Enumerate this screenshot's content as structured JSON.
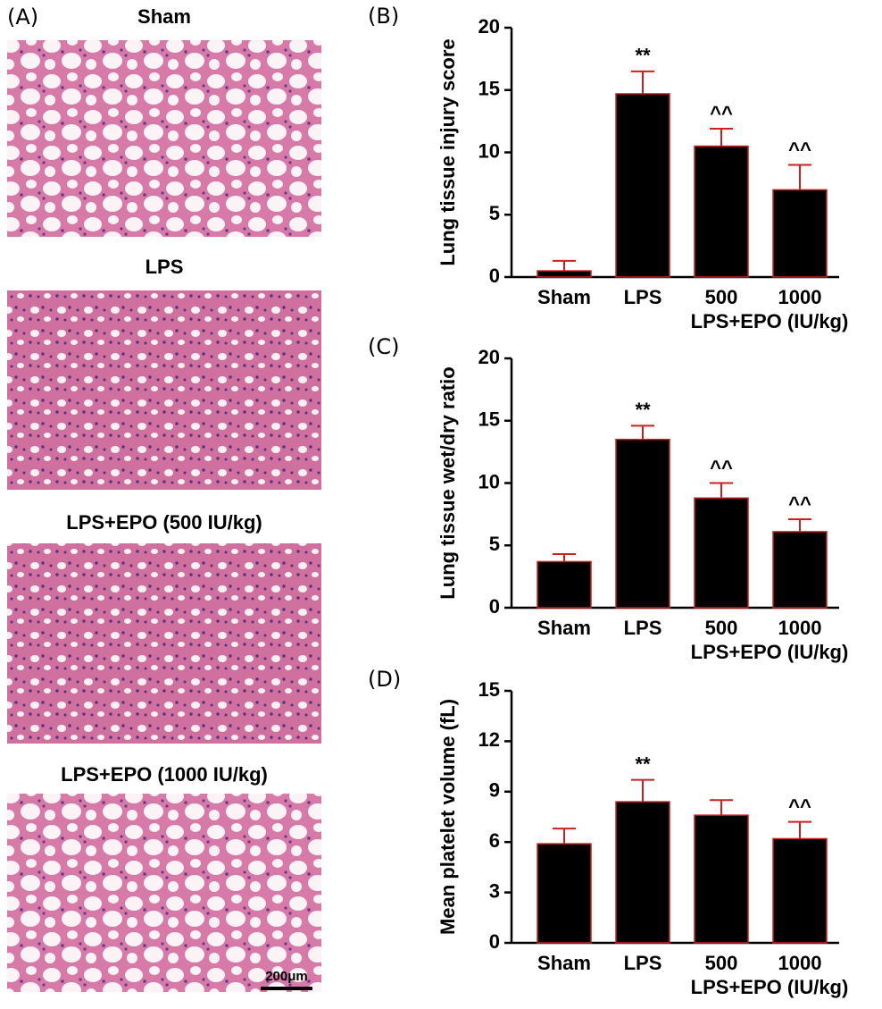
{
  "histology": {
    "panel": "(A)",
    "titles": [
      "Sham",
      "LPS",
      "LPS+EPO (500 IU/kg)",
      "LPS+EPO (1000 IU/kg)"
    ],
    "scale_bar": "200μm"
  },
  "chart_data": [
    {
      "type": "bar",
      "panel": "(B)",
      "ylabel": "Lung tissue injury score",
      "categories": [
        "Sham",
        "LPS",
        "500",
        "1000"
      ],
      "group_label": "LPS+EPO (IU/kg)",
      "values": [
        0.5,
        14.7,
        10.5,
        7.0
      ],
      "errors": [
        0.8,
        1.8,
        1.4,
        2.0
      ],
      "annotations": [
        null,
        "**",
        "^^",
        "^^"
      ],
      "color": "#000000",
      "edge_color": "#cc1f1f",
      "ylim": [
        0,
        20
      ],
      "yticks": [
        0,
        5,
        10,
        15,
        20
      ]
    },
    {
      "type": "bar",
      "panel": "(C)",
      "ylabel": "Lung tissue wet/dry ratio",
      "categories": [
        "Sham",
        "LPS",
        "500",
        "1000"
      ],
      "group_label": "LPS+EPO (IU/kg)",
      "values": [
        3.7,
        13.5,
        8.8,
        6.1
      ],
      "errors": [
        0.6,
        1.1,
        1.2,
        1.0
      ],
      "annotations": [
        null,
        "**",
        "^^",
        "^^"
      ],
      "color": "#000000",
      "edge_color": "#cc1f1f",
      "ylim": [
        0,
        20
      ],
      "yticks": [
        0,
        5,
        10,
        15,
        20
      ]
    },
    {
      "type": "bar",
      "panel": "(D)",
      "ylabel": "Mean platelet volume (fL)",
      "categories": [
        "Sham",
        "LPS",
        "500",
        "1000"
      ],
      "group_label": "LPS+EPO (IU/kg)",
      "values": [
        5.9,
        8.4,
        7.6,
        6.2
      ],
      "errors": [
        0.9,
        1.3,
        0.9,
        1.0
      ],
      "annotations": [
        null,
        "**",
        null,
        "^^"
      ],
      "color": "#000000",
      "edge_color": "#cc1f1f",
      "ylim": [
        0,
        15
      ],
      "yticks": [
        0,
        3,
        6,
        9,
        12,
        15
      ]
    }
  ]
}
